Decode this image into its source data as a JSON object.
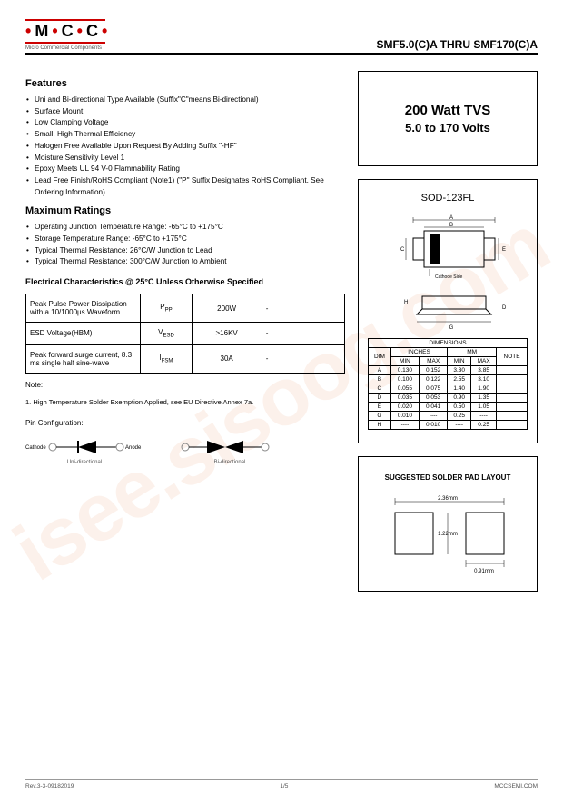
{
  "header": {
    "logo_text": "M C C",
    "logo_subtitle": "Micro Commercial Components",
    "part_title": "SMF5.0(C)A THRU SMF170(C)A"
  },
  "features": {
    "title": "Features",
    "items": [
      "Uni and Bi-directional Type Available (Suffix\"C\"means Bi-directional)",
      "Surface Mount",
      "Low Clamping Voltage",
      "Small, High Thermal Efficiency",
      "Halogen Free Available Upon Request By Adding Suffix \"-HF\"",
      "Moisture Sensitivity Level 1",
      "Epoxy Meets UL 94 V-0 Flammability Rating",
      "Lead Free Finish/RoHS Compliant  (Note1) (\"P\" Suffix Designates RoHS Compliant. See Ordering Information)"
    ]
  },
  "maxratings": {
    "title": "Maximum Ratings",
    "items": [
      "Operating Junction Temperature Range: -65°C to +175°C",
      "Storage Temperature Range: -65°C to +175°C",
      "Typical Thermal Resistance: 26°C/W Junction to Lead",
      "Typical Thermal Resistance: 300°C/W Junction to Ambient"
    ]
  },
  "ec": {
    "title": "Electrical Characteristics @ 25°C Unless Otherwise Specified",
    "rows": [
      {
        "param": "Peak Pulse Power Dissipation with a 10/1000µs Waveform",
        "sym": "P",
        "sub": "PP",
        "val": "200W",
        "blank": "-"
      },
      {
        "param": "ESD Voltage(HBM)",
        "sym": "V",
        "sub": "ESD",
        "val": ">16KV",
        "blank": "-"
      },
      {
        "param": "Peak forward surge current, 8.3 ms single half sine-wave",
        "sym": "I",
        "sub": "FSM",
        "val": "30A",
        "blank": "-"
      }
    ]
  },
  "notes": {
    "note_h": "Note:",
    "note_1": "1. High Temperature Solder Exemption Applied, see EU Directive Annex 7a.",
    "pin_h": "Pin Configuration:",
    "cathode": "Cathode",
    "anode": "Anode",
    "uni": "Uni-directional",
    "bi": "Bi-directional"
  },
  "product": {
    "title": "200 Watt TVS",
    "sub": "5.0 to 170 Volts"
  },
  "package": {
    "name": "SOD-123FL",
    "cathode_side": "Cathode Side",
    "dim_title": "DIMENSIONS",
    "headers": {
      "dim": "DIM",
      "inches": "INCHES",
      "mm": "MM",
      "note": "NOTE",
      "min": "MIN",
      "max": "MAX"
    },
    "rows": [
      {
        "d": "A",
        "imin": "0.130",
        "imax": "0.152",
        "mmin": "3.30",
        "mmax": "3.85",
        "n": ""
      },
      {
        "d": "B",
        "imin": "0.100",
        "imax": "0.122",
        "mmin": "2.55",
        "mmax": "3.10",
        "n": ""
      },
      {
        "d": "C",
        "imin": "0.055",
        "imax": "0.075",
        "mmin": "1.40",
        "mmax": "1.90",
        "n": ""
      },
      {
        "d": "D",
        "imin": "0.035",
        "imax": "0.053",
        "mmin": "0.90",
        "mmax": "1.35",
        "n": ""
      },
      {
        "d": "E",
        "imin": "0.020",
        "imax": "0.041",
        "mmin": "0.50",
        "mmax": "1.05",
        "n": ""
      },
      {
        "d": "G",
        "imin": "0.010",
        "imax": "----",
        "mmin": "0.25",
        "mmax": "----",
        "n": ""
      },
      {
        "d": "H",
        "imin": "----",
        "imax": "0.010",
        "mmin": "----",
        "mmax": "0.25",
        "n": ""
      }
    ]
  },
  "solder": {
    "title": "SUGGESTED SOLDER PAD LAYOUT",
    "w": "2.36mm",
    "h": "1.22mm",
    "pad": "0.91mm"
  },
  "footer": {
    "rev": "Rev.3-3-09182019",
    "page": "1/5",
    "site": "MCCSEMI.COM"
  },
  "watermark": "isee.sisoog.com"
}
